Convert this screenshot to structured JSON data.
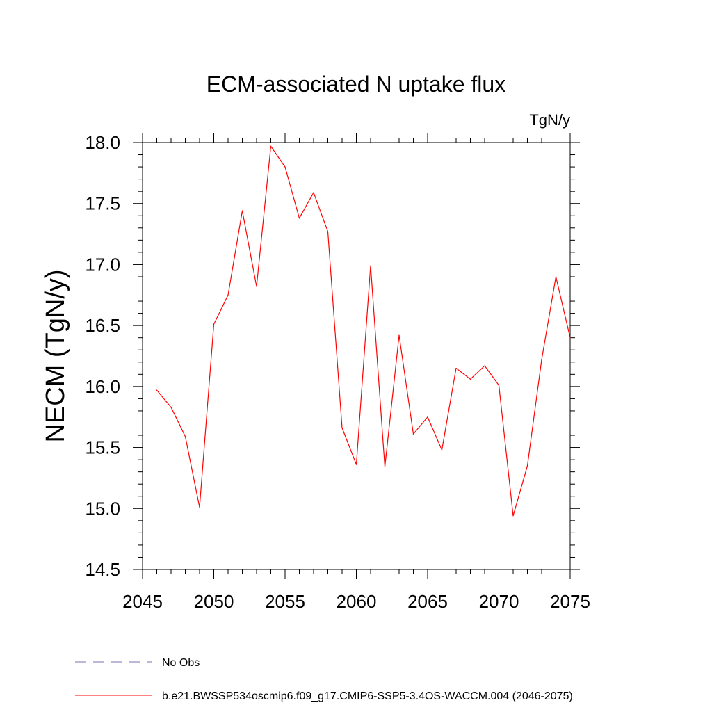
{
  "colors": {
    "series": "#ff0000",
    "obs": "#7b6fb5",
    "axis": "#000000"
  },
  "chart_data": {
    "type": "line",
    "title": "ECM-associated N uptake flux",
    "units_label": "TgN/y",
    "ylabel": "NECM  (TgN/y)",
    "xlabel": "",
    "xlim": [
      2045,
      2075
    ],
    "ylim": [
      14.5,
      18.0
    ],
    "x_ticks": [
      2045,
      2050,
      2055,
      2060,
      2065,
      2070,
      2075
    ],
    "y_ticks": [
      14.5,
      15.0,
      15.5,
      16.0,
      16.5,
      17.0,
      17.5,
      18.0
    ],
    "x_tick_labels": [
      "2045",
      "2050",
      "2055",
      "2060",
      "2065",
      "2070",
      "2075"
    ],
    "y_tick_labels": [
      "14.5",
      "15.0",
      "15.5",
      "16.0",
      "16.5",
      "17.0",
      "17.5",
      "18.0"
    ],
    "grid": false,
    "legend_position": "bottom",
    "series": [
      {
        "name": "b.e21.BWSSP534oscmip6.f09_g17.CMIP6-SSP5-3.4OS-WACCM.004 (2046-2075)",
        "color": "#ff0000",
        "x": [
          2046,
          2047,
          2048,
          2049,
          2050,
          2051,
          2052,
          2053,
          2054,
          2055,
          2056,
          2057,
          2058,
          2059,
          2060,
          2061,
          2062,
          2063,
          2064,
          2065,
          2066,
          2067,
          2068,
          2069,
          2070,
          2071,
          2072,
          2073,
          2074,
          2075
        ],
        "values": [
          15.97,
          15.83,
          15.59,
          15.01,
          16.51,
          16.75,
          17.44,
          16.82,
          17.97,
          17.8,
          17.38,
          17.59,
          17.27,
          15.66,
          15.36,
          16.99,
          15.34,
          16.42,
          15.61,
          15.75,
          15.48,
          16.15,
          16.06,
          16.17,
          16.01,
          14.94,
          15.35,
          16.22,
          16.9,
          16.4
        ]
      }
    ],
    "legend": [
      {
        "label": "No Obs",
        "style": "dashed",
        "color": "#7b6fb5"
      },
      {
        "label": "b.e21.BWSSP534oscmip6.f09_g17.CMIP6-SSP5-3.4OS-WACCM.004 (2046-2075)",
        "style": "solid",
        "color": "#ff0000"
      }
    ]
  }
}
